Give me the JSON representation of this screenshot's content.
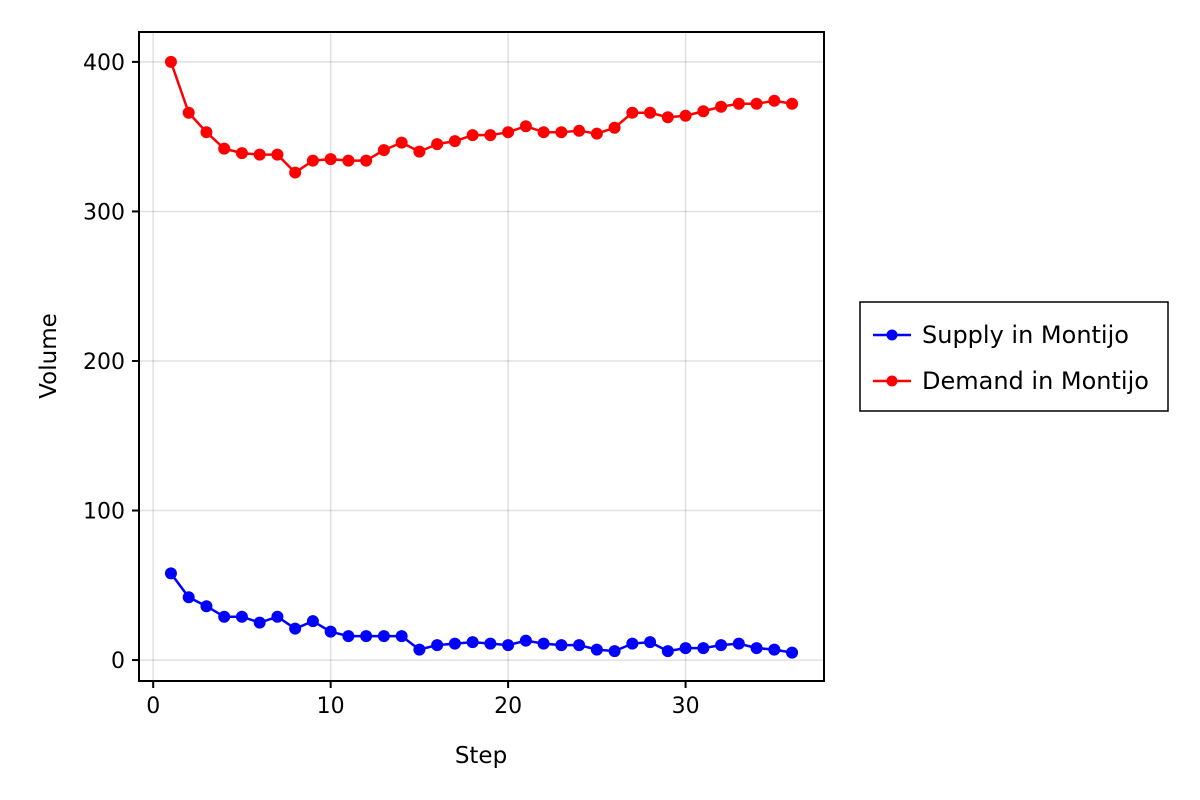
{
  "chart_data": {
    "type": "line",
    "title": "",
    "xlabel": "Step",
    "ylabel": "Volume",
    "xlim": [
      -0.8,
      37.8
    ],
    "ylim": [
      -14,
      420
    ],
    "x_ticks": [
      0,
      10,
      20,
      30
    ],
    "x_tick_labels": [
      "0",
      "10",
      "20",
      "30"
    ],
    "y_ticks": [
      0,
      100,
      200,
      300,
      400
    ],
    "y_tick_labels": [
      "0",
      "100",
      "200",
      "300",
      "400"
    ],
    "grid": true,
    "legend_position": "right",
    "x": [
      1,
      2,
      3,
      4,
      5,
      6,
      7,
      8,
      9,
      10,
      11,
      12,
      13,
      14,
      15,
      16,
      17,
      18,
      19,
      20,
      21,
      22,
      23,
      24,
      25,
      26,
      27,
      28,
      29,
      30,
      31,
      32,
      33,
      34,
      35,
      36
    ],
    "series": [
      {
        "name": "Supply in Montijo",
        "color": "#0000ff",
        "values": [
          58,
          42,
          36,
          29,
          29,
          25,
          29,
          21,
          26,
          19,
          16,
          16,
          16,
          16,
          7,
          10,
          11,
          12,
          11,
          10,
          13,
          11,
          10,
          10,
          7,
          6,
          11,
          12,
          6,
          8,
          8,
          10,
          11,
          8,
          7,
          5
        ]
      },
      {
        "name": "Demand in Montijo",
        "color": "#ff0000",
        "values": [
          400,
          366,
          353,
          342,
          339,
          338,
          338,
          326,
          334,
          335,
          334,
          334,
          341,
          346,
          340,
          345,
          347,
          351,
          351,
          353,
          357,
          353,
          353,
          354,
          352,
          356,
          366,
          366,
          363,
          364,
          367,
          370,
          372,
          372,
          374,
          372
        ]
      }
    ]
  }
}
